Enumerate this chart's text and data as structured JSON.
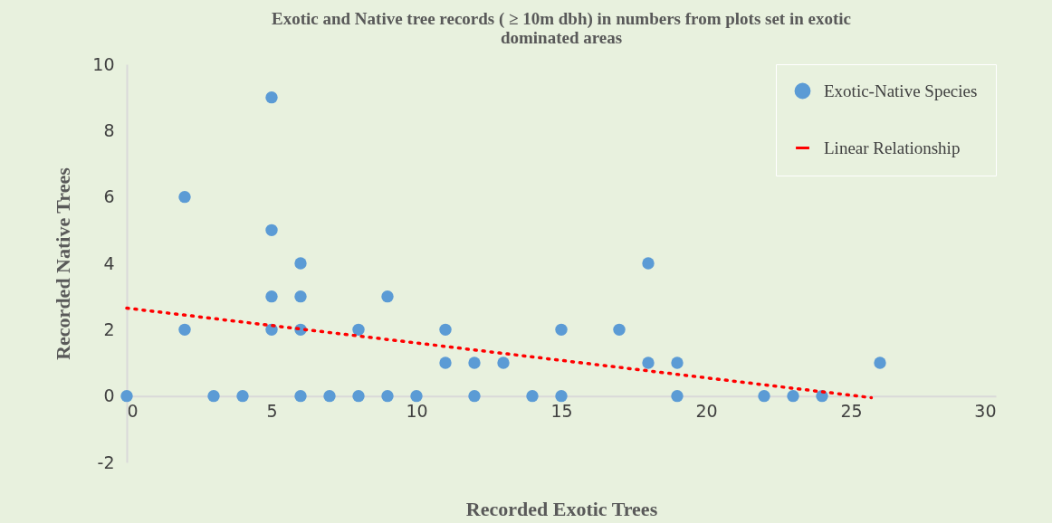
{
  "chart_data": {
    "type": "scatter",
    "title": "Exotic and Native tree records ( ≥ 10m dbh) in numbers from plots set in exotic dominated areas",
    "xlabel": "Recorded Exotic Trees",
    "ylabel": "Recorded Native Trees",
    "xlim": [
      0,
      30
    ],
    "xticks": [
      0,
      5,
      10,
      15,
      20,
      25,
      30
    ],
    "ylim": [
      -2,
      10
    ],
    "yticks": [
      -2,
      0,
      2,
      4,
      6,
      8,
      10
    ],
    "grid": false,
    "legend": "top right",
    "series": [
      {
        "name": "Exotic-Native Species",
        "color": "#5b9bd5",
        "marker": "circle",
        "x": [
          0,
          2,
          2,
          3,
          4,
          5,
          5,
          5,
          5,
          6,
          6,
          6,
          6,
          7,
          8,
          8,
          9,
          9,
          10,
          11,
          11,
          12,
          12,
          13,
          14,
          15,
          15,
          17,
          18,
          18,
          19,
          19,
          22,
          23,
          24,
          26
        ],
        "values": [
          0,
          6,
          2,
          0,
          0,
          9,
          5,
          3,
          2,
          4,
          3,
          2,
          0,
          0,
          2,
          0,
          3,
          0,
          0,
          2,
          1,
          1,
          0,
          1,
          0,
          2,
          0,
          2,
          4,
          1,
          1,
          0,
          0,
          0,
          0,
          1
        ]
      },
      {
        "name": "Linear Relationship",
        "color": "#ff0000",
        "type": "line",
        "line_style": "dotted",
        "x": [
          0,
          25.7
        ],
        "values": [
          2.65,
          -0.05
        ]
      }
    ]
  }
}
